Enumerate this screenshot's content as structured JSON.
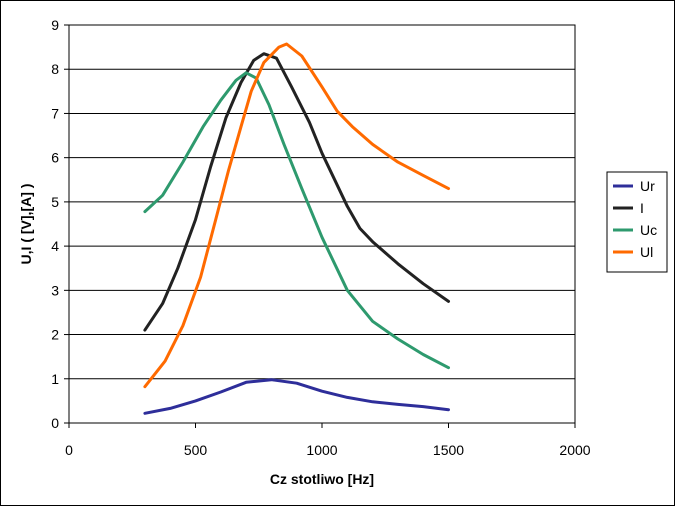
{
  "chart_data": {
    "type": "line",
    "title": "",
    "xlabel": "Cz stotliwo [Hz]",
    "ylabel": "U,I ( [V],[A] )",
    "xlim": [
      0,
      2000
    ],
    "ylim": [
      0,
      9
    ],
    "xticks": [
      0,
      500,
      1000,
      1500,
      2000
    ],
    "yticks": [
      0,
      1,
      2,
      3,
      4,
      5,
      6,
      7,
      8,
      9
    ],
    "grid": "horizontal",
    "legend_position": "right",
    "series": [
      {
        "name": "Ur",
        "color": "#2e2e9a",
        "points": [
          [
            300,
            0.22
          ],
          [
            400,
            0.33
          ],
          [
            500,
            0.5
          ],
          [
            600,
            0.7
          ],
          [
            700,
            0.92
          ],
          [
            800,
            0.98
          ],
          [
            900,
            0.9
          ],
          [
            1000,
            0.72
          ],
          [
            1100,
            0.58
          ],
          [
            1200,
            0.48
          ],
          [
            1300,
            0.42
          ],
          [
            1400,
            0.37
          ],
          [
            1500,
            0.3
          ]
        ]
      },
      {
        "name": "I",
        "color": "#222222",
        "points": [
          [
            300,
            2.1
          ],
          [
            370,
            2.7
          ],
          [
            430,
            3.5
          ],
          [
            500,
            4.6
          ],
          [
            560,
            5.8
          ],
          [
            620,
            6.9
          ],
          [
            680,
            7.7
          ],
          [
            730,
            8.2
          ],
          [
            770,
            8.35
          ],
          [
            820,
            8.25
          ],
          [
            880,
            7.6
          ],
          [
            950,
            6.8
          ],
          [
            1000,
            6.1
          ],
          [
            1050,
            5.5
          ],
          [
            1100,
            4.9
          ],
          [
            1150,
            4.4
          ],
          [
            1200,
            4.1
          ],
          [
            1300,
            3.6
          ],
          [
            1400,
            3.15
          ],
          [
            1500,
            2.75
          ]
        ]
      },
      {
        "name": "Uc",
        "color": "#2e9a6e",
        "points": [
          [
            300,
            4.78
          ],
          [
            370,
            5.15
          ],
          [
            450,
            5.9
          ],
          [
            530,
            6.7
          ],
          [
            600,
            7.3
          ],
          [
            660,
            7.75
          ],
          [
            700,
            7.92
          ],
          [
            740,
            7.8
          ],
          [
            790,
            7.2
          ],
          [
            850,
            6.3
          ],
          [
            920,
            5.3
          ],
          [
            1000,
            4.2
          ],
          [
            1100,
            3.0
          ],
          [
            1200,
            2.3
          ],
          [
            1300,
            1.9
          ],
          [
            1400,
            1.55
          ],
          [
            1500,
            1.25
          ]
        ]
      },
      {
        "name": "Ul",
        "color": "#ff6a00",
        "points": [
          [
            300,
            0.82
          ],
          [
            380,
            1.4
          ],
          [
            450,
            2.2
          ],
          [
            520,
            3.3
          ],
          [
            580,
            4.6
          ],
          [
            630,
            5.7
          ],
          [
            680,
            6.7
          ],
          [
            720,
            7.5
          ],
          [
            770,
            8.15
          ],
          [
            830,
            8.5
          ],
          [
            860,
            8.57
          ],
          [
            920,
            8.3
          ],
          [
            1000,
            7.6
          ],
          [
            1060,
            7.05
          ],
          [
            1120,
            6.7
          ],
          [
            1200,
            6.3
          ],
          [
            1300,
            5.9
          ],
          [
            1400,
            5.6
          ],
          [
            1500,
            5.3
          ]
        ]
      }
    ]
  }
}
